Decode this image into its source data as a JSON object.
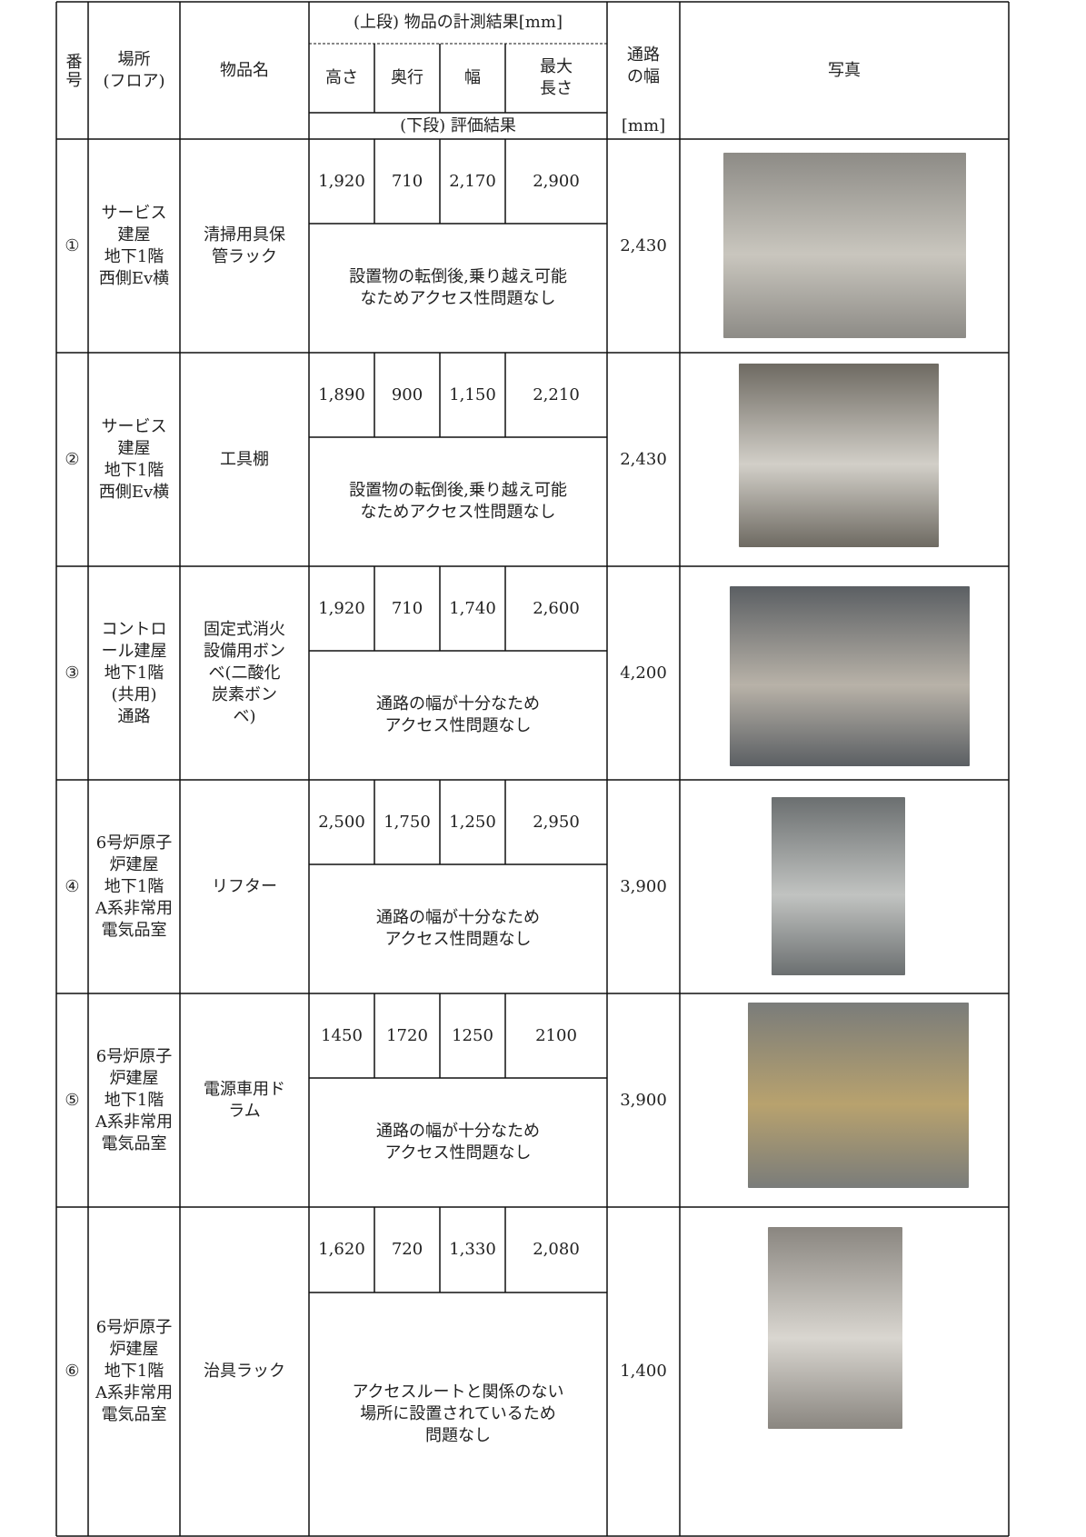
{
  "header": {
    "number": "番号",
    "location": [
      "場所",
      "(フロア)"
    ],
    "item": "物品名",
    "measurement_upper": "(上段) 物品の計測結果[mm]",
    "height": "高さ",
    "depth": "奥行",
    "width": "幅",
    "max_length": [
      "最大",
      "長さ"
    ],
    "evaluation_lower": "(下段) 評価結果",
    "passage_width": [
      "通路",
      "の幅"
    ],
    "passage_unit": "[mm]",
    "photo": "写真"
  },
  "rows": [
    {
      "number": "①",
      "location": [
        "サービス",
        "建屋",
        "地下1階",
        "西側Ev横"
      ],
      "item": [
        "清掃用具保",
        "管ラック"
      ],
      "height": "1,920",
      "depth": "710",
      "width": "2,170",
      "max_length": "2,900",
      "evaluation": [
        "設置物の転倒後,乗り越え可能",
        "なためアクセス性問題なし"
      ],
      "passage_width": "2,430"
    },
    {
      "number": "②",
      "location": [
        "サービス",
        "建屋",
        "地下1階",
        "西側Ev横"
      ],
      "item": [
        "工具棚"
      ],
      "height": "1,890",
      "depth": "900",
      "width": "1,150",
      "max_length": "2,210",
      "evaluation": [
        "設置物の転倒後,乗り越え可能",
        "なためアクセス性問題なし"
      ],
      "passage_width": "2,430"
    },
    {
      "number": "③",
      "location": [
        "コントロ",
        "ール建屋",
        "地下1階",
        "(共用)",
        "通路"
      ],
      "item": [
        "固定式消火",
        "設備用ボン",
        "ベ(二酸化",
        "炭素ボン",
        "ベ)"
      ],
      "height": "1,920",
      "depth": "710",
      "width": "1,740",
      "max_length": "2,600",
      "evaluation": [
        "通路の幅が十分なため",
        "アクセス性問題なし"
      ],
      "passage_width": "4,200"
    },
    {
      "number": "④",
      "location": [
        "6号炉原子",
        "炉建屋",
        "地下1階",
        "A系非常用",
        "電気品室"
      ],
      "item": [
        "リフター"
      ],
      "height": "2,500",
      "depth": "1,750",
      "width": "1,250",
      "max_length": "2,950",
      "evaluation": [
        "通路の幅が十分なため",
        "アクセス性問題なし"
      ],
      "passage_width": "3,900"
    },
    {
      "number": "⑤",
      "location": [
        "6号炉原子",
        "炉建屋",
        "地下1階",
        "A系非常用",
        "電気品室"
      ],
      "item": [
        "電源車用ド",
        "ラム"
      ],
      "height": "1450",
      "depth": "1720",
      "width": "1250",
      "max_length": "2100",
      "evaluation": [
        "通路の幅が十分なため",
        "アクセス性問題なし"
      ],
      "passage_width": "3,900"
    },
    {
      "number": "⑥",
      "location": [
        "6号炉原子",
        "炉建屋",
        "地下1階",
        "A系非常用",
        "電気品室"
      ],
      "item": [
        "治具ラック"
      ],
      "height": "1,620",
      "depth": "720",
      "width": "1,330",
      "max_length": "2,080",
      "evaluation": [
        "アクセスルートと関係のない",
        "場所に設置されているため",
        "問題なし"
      ],
      "passage_width": "1,400"
    }
  ]
}
